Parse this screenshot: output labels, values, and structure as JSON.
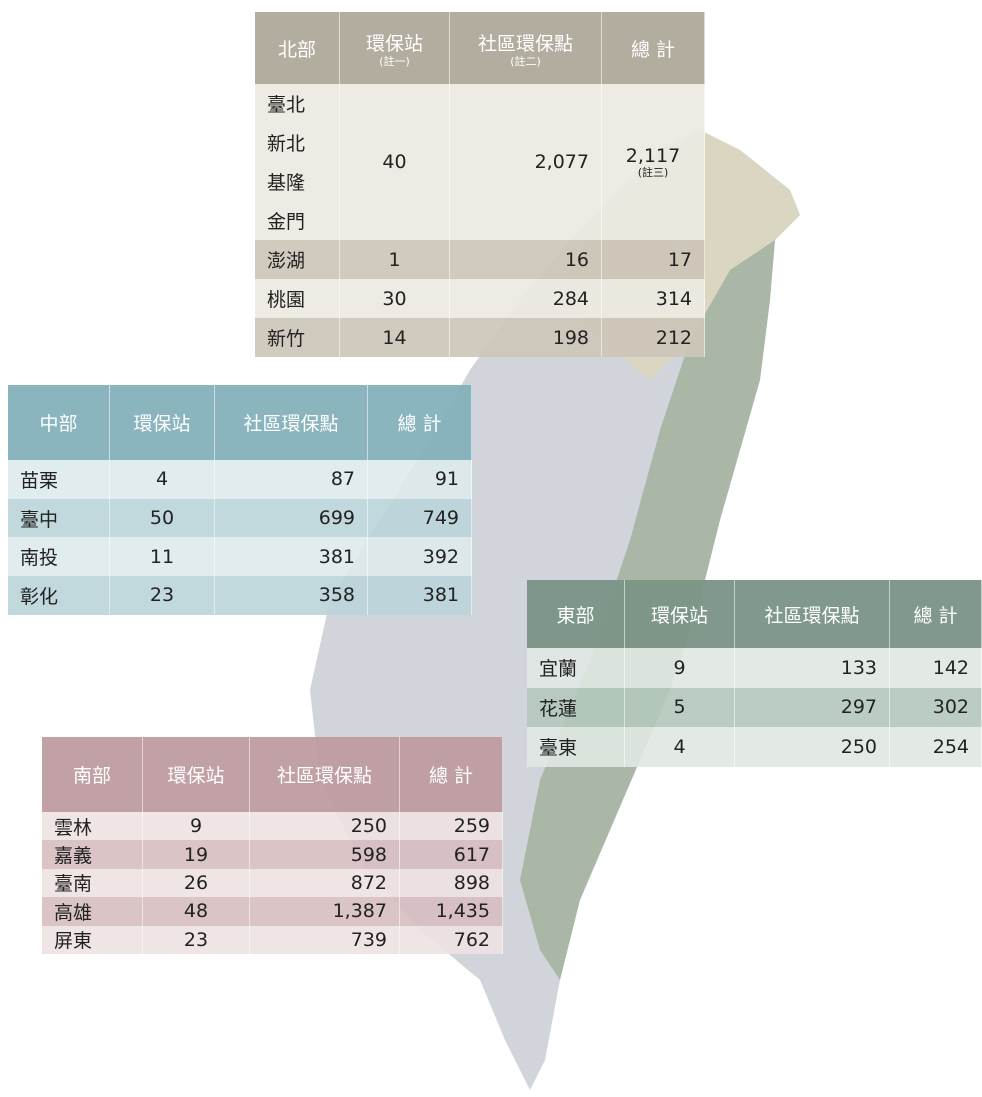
{
  "north": {
    "header": [
      "北部",
      "環保站",
      "社區環保點",
      "總 計"
    ],
    "header_notes": [
      "(註一)",
      "(註二)"
    ],
    "merged": {
      "regions": [
        "臺北",
        "新北",
        "基隆",
        "金門"
      ],
      "station": "40",
      "points": "2,077",
      "total": "2,117",
      "total_note": "(註三)"
    },
    "rows": [
      [
        "澎湖",
        "1",
        "16",
        "17"
      ],
      [
        "桃園",
        "30",
        "284",
        "314"
      ],
      [
        "新竹",
        "14",
        "198",
        "212"
      ]
    ]
  },
  "central": {
    "header": [
      "中部",
      "環保站",
      "社區環保點",
      "總 計"
    ],
    "rows": [
      [
        "苗栗",
        "4",
        "87",
        "91"
      ],
      [
        "臺中",
        "50",
        "699",
        "749"
      ],
      [
        "南投",
        "11",
        "381",
        "392"
      ],
      [
        "彰化",
        "23",
        "358",
        "381"
      ]
    ]
  },
  "east": {
    "header": [
      "東部",
      "環保站",
      "社區環保點",
      "總 計"
    ],
    "rows": [
      [
        "宜蘭",
        "9",
        "133",
        "142"
      ],
      [
        "花蓮",
        "5",
        "297",
        "302"
      ],
      [
        "臺東",
        "4",
        "250",
        "254"
      ]
    ]
  },
  "south": {
    "header": [
      "南部",
      "環保站",
      "社區環保點",
      "總 計"
    ],
    "rows": [
      [
        "雲林",
        "9",
        "250",
        "259"
      ],
      [
        "嘉義",
        "19",
        "598",
        "617"
      ],
      [
        "臺南",
        "26",
        "872",
        "898"
      ],
      [
        "高雄",
        "48",
        "1,387",
        "1,435"
      ],
      [
        "屏東",
        "23",
        "739",
        "762"
      ]
    ]
  }
}
